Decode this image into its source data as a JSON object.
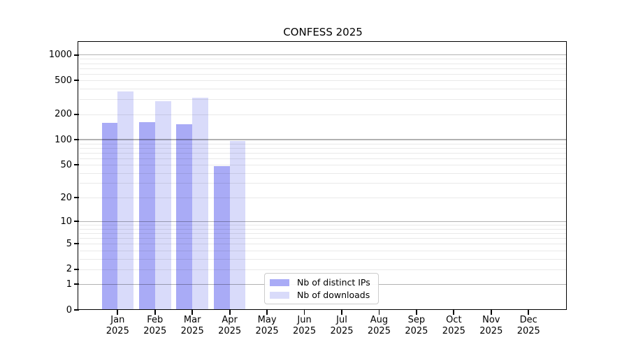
{
  "title": "CONFESS 2025",
  "legend": {
    "items": [
      {
        "label": "Nb of distinct IPs",
        "color": "#a9abf6"
      },
      {
        "label": "Nb of downloads",
        "color": "#d9dbfa"
      }
    ]
  },
  "chart_data": {
    "type": "bar",
    "title": "CONFESS 2025",
    "xlabel": "",
    "ylabel": "",
    "y_scale": "log(value+1)",
    "ylim": [
      0,
      1400
    ],
    "y_ticks": [
      0,
      1,
      2,
      5,
      10,
      20,
      50,
      100,
      200,
      500,
      1000
    ],
    "y_major_gridlines": [
      1,
      10,
      100,
      1000
    ],
    "y_minor_gridlines": [
      2,
      3,
      4,
      5,
      6,
      7,
      8,
      9,
      20,
      30,
      40,
      50,
      60,
      70,
      80,
      90,
      200,
      300,
      400,
      500,
      600,
      700,
      800,
      900
    ],
    "categories": [
      {
        "month": "Jan",
        "year": "2025"
      },
      {
        "month": "Feb",
        "year": "2025"
      },
      {
        "month": "Mar",
        "year": "2025"
      },
      {
        "month": "Apr",
        "year": "2025"
      },
      {
        "month": "May",
        "year": "2025"
      },
      {
        "month": "Jun",
        "year": "2025"
      },
      {
        "month": "Jul",
        "year": "2025"
      },
      {
        "month": "Aug",
        "year": "2025"
      },
      {
        "month": "Sep",
        "year": "2025"
      },
      {
        "month": "Oct",
        "year": "2025"
      },
      {
        "month": "Nov",
        "year": "2025"
      },
      {
        "month": "Dec",
        "year": "2025"
      }
    ],
    "series": [
      {
        "name": "Nb of distinct IPs",
        "color": "#a9abf6",
        "values": [
          158,
          162,
          151,
          48,
          null,
          null,
          null,
          null,
          null,
          null,
          null,
          null
        ]
      },
      {
        "name": "Nb of downloads",
        "color": "#d9dbfa",
        "values": [
          372,
          287,
          315,
          96,
          null,
          null,
          null,
          null,
          null,
          null,
          null,
          null
        ]
      }
    ],
    "legend_position": "lower center",
    "grid": true
  }
}
